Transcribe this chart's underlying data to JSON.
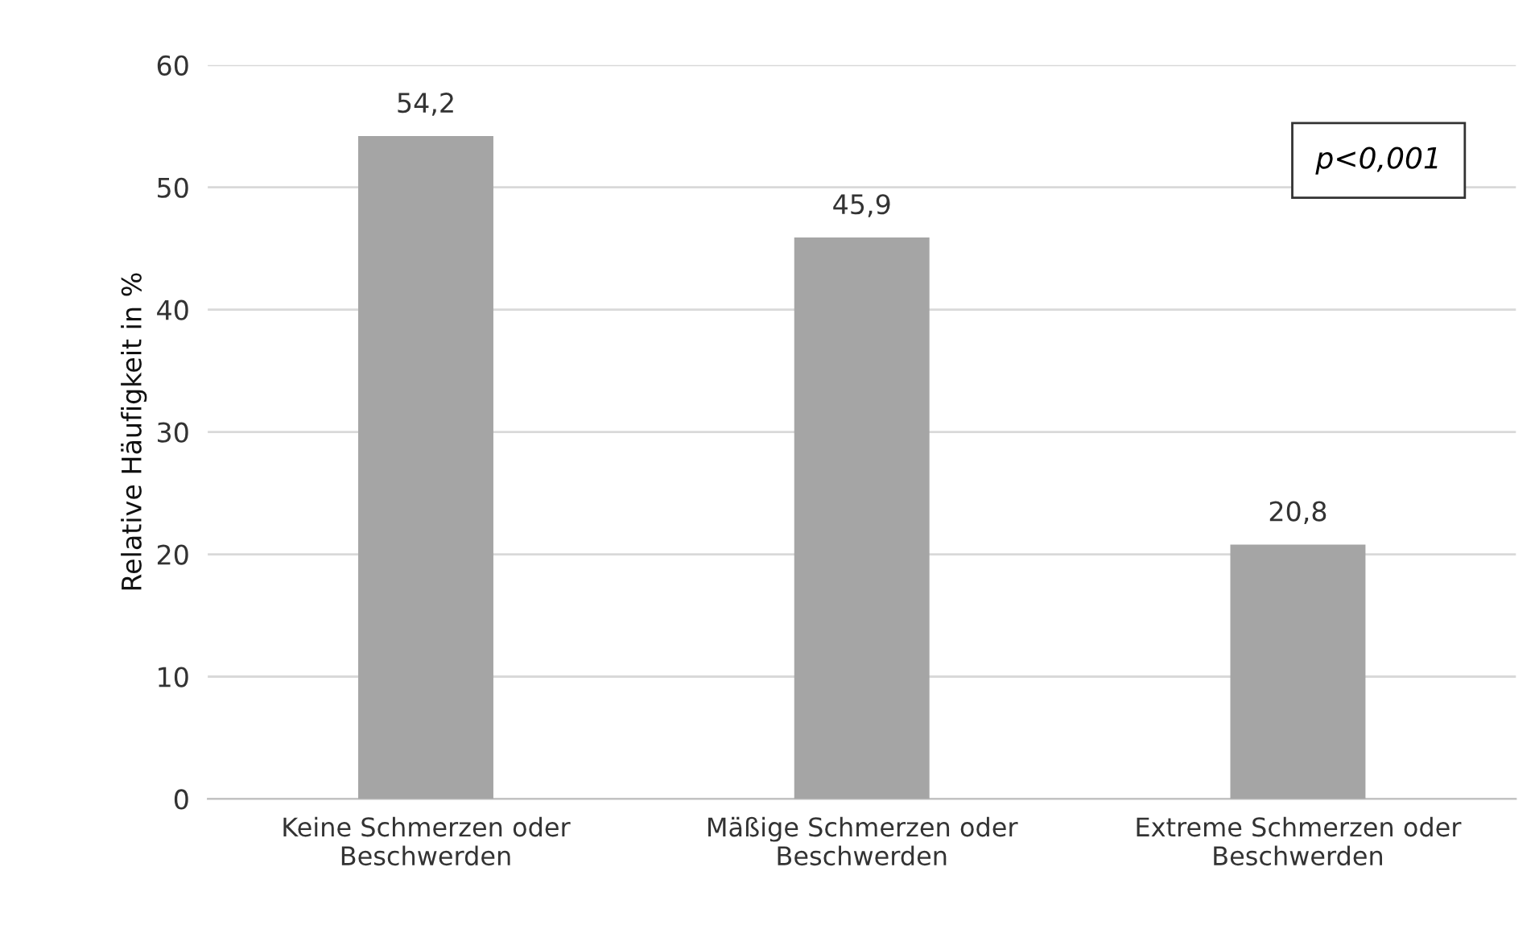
{
  "chart_data": {
    "type": "bar",
    "ylabel": "Relative Häufigkeit in %",
    "categories": [
      "Keine Schmerzen oder\nBeschwerden",
      "Mäßige Schmerzen oder\nBeschwerden",
      "Extreme Schmerzen oder\nBeschwerden"
    ],
    "values": [
      54.2,
      45.9,
      20.8
    ],
    "value_labels": [
      "54,2",
      "45,9",
      "20,8"
    ],
    "color": "#a5a5a5",
    "ylim": [
      0,
      60
    ],
    "yticks": [
      0,
      10,
      20,
      30,
      40,
      50,
      60
    ],
    "grid": "y",
    "annotations": [
      "p<0,001"
    ]
  }
}
